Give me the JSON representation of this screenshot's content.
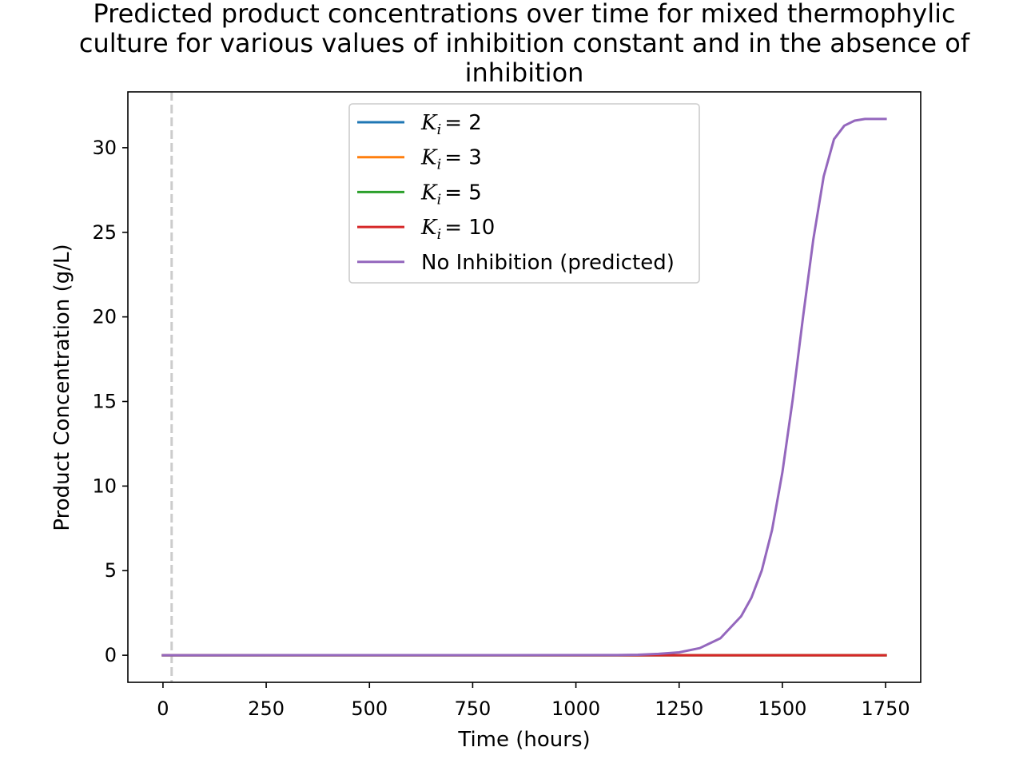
{
  "chart_data": {
    "type": "line",
    "title_lines": [
      "Predicted product concentrations over time for mixed thermophylic",
      "culture for various values of inhibition constant and in the absence of",
      "inhibition"
    ],
    "xlabel": "Time (hours)",
    "ylabel": "Product Concentration (g/L)",
    "xlim": [
      -85,
      1835
    ],
    "ylim": [
      -1.6,
      33.3
    ],
    "xticks": [
      0,
      250,
      500,
      750,
      1000,
      1250,
      1500,
      1750
    ],
    "yticks": [
      0,
      5,
      10,
      15,
      20,
      25,
      30
    ],
    "vline": {
      "x": 21,
      "style": "dashed",
      "color": "#cccccc"
    },
    "legend_position": "upper-center",
    "series": [
      {
        "name": "K_i = 2",
        "legend_symbol": "K",
        "legend_sub": "i",
        "legend_value": "= 2",
        "color": "#1f77b4",
        "x": [
          0,
          1750
        ],
        "y": [
          0,
          0
        ]
      },
      {
        "name": "K_i = 3",
        "legend_symbol": "K",
        "legend_sub": "i",
        "legend_value": "= 3",
        "color": "#ff7f0e",
        "x": [
          0,
          1750
        ],
        "y": [
          0,
          0
        ]
      },
      {
        "name": "K_i = 5",
        "legend_symbol": "K",
        "legend_sub": "i",
        "legend_value": "= 5",
        "color": "#2ca02c",
        "x": [
          0,
          1750
        ],
        "y": [
          0,
          0
        ]
      },
      {
        "name": "K_i = 10",
        "legend_symbol": "K",
        "legend_sub": "i",
        "legend_value": "= 10",
        "color": "#d62728",
        "x": [
          0,
          1750
        ],
        "y": [
          0,
          0
        ]
      },
      {
        "name": "No Inhibition (predicted)",
        "legend_text": "No Inhibition (predicted)",
        "color": "#9467bd",
        "x": [
          0,
          1100,
          1150,
          1200,
          1250,
          1300,
          1350,
          1400,
          1425,
          1450,
          1475,
          1500,
          1525,
          1550,
          1575,
          1600,
          1625,
          1650,
          1675,
          1700,
          1725,
          1750
        ],
        "y": [
          0,
          0.01,
          0.03,
          0.08,
          0.17,
          0.42,
          1.0,
          2.3,
          3.4,
          5.0,
          7.4,
          10.8,
          15.1,
          20.0,
          24.6,
          28.3,
          30.5,
          31.3,
          31.6,
          31.7,
          31.7,
          31.7
        ]
      }
    ]
  }
}
